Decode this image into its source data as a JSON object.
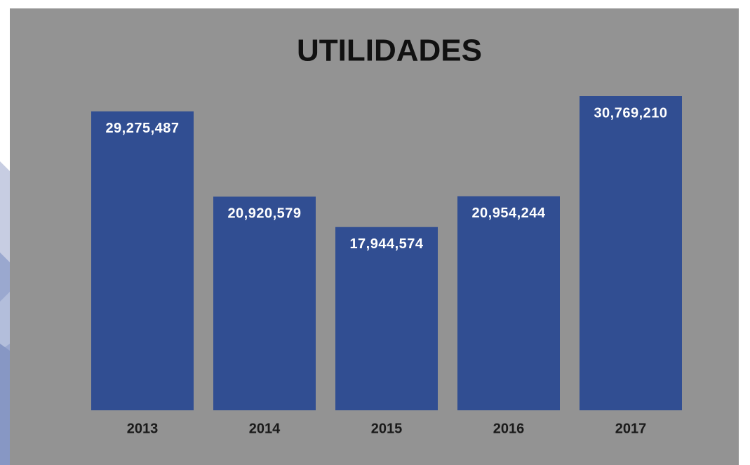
{
  "chart_data": {
    "type": "bar",
    "title": "UTILIDADES",
    "categories": [
      "2013",
      "2014",
      "2015",
      "2016",
      "2017"
    ],
    "values": [
      29275487,
      20920579,
      17944574,
      20954244,
      30769210
    ],
    "value_labels": [
      "29,275,487",
      "20,920,579",
      "17,944,574",
      "20,954,244",
      "30,769,210"
    ],
    "color": "#314e92"
  }
}
